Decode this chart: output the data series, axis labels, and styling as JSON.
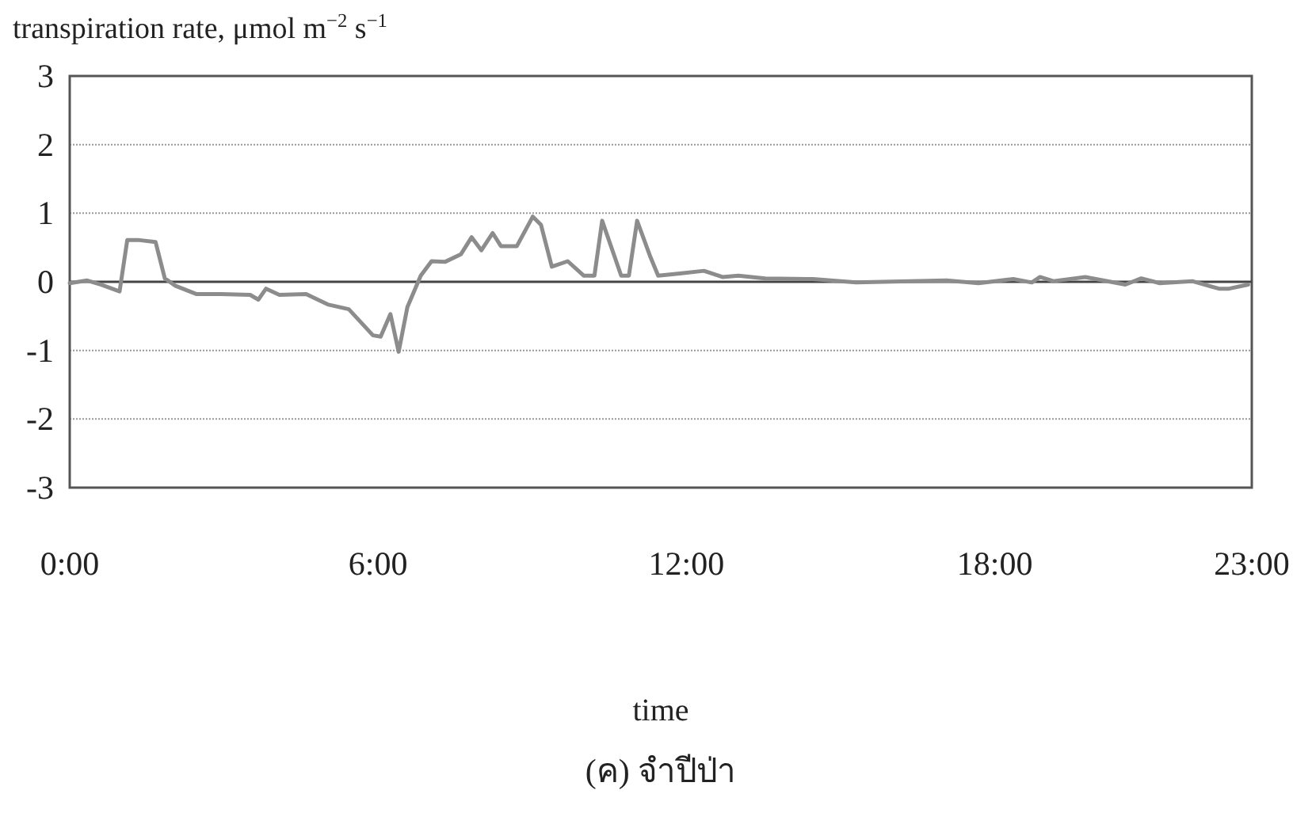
{
  "chart_data": {
    "type": "line",
    "ylabel": "transpiration rate, μmol m$^{−2}$ s$^{−1}$",
    "xlabel": "time",
    "title": "(ค) จำปีป่า",
    "x": [
      0,
      0.34,
      0.6,
      0.97,
      1.12,
      1.33,
      1.67,
      1.85,
      2.06,
      2.47,
      2.94,
      3.51,
      3.67,
      3.82,
      4.08,
      4.6,
      5.02,
      5.43,
      5.9,
      6.05,
      6.24,
      6.4,
      6.57,
      6.83,
      7.04,
      7.3,
      7.61,
      7.82,
      8.01,
      8.23,
      8.39,
      8.7,
      9.01,
      9.17,
      9.38,
      9.69,
      10.0,
      10.21,
      10.36,
      10.73,
      10.88,
      11.04,
      11.3,
      11.45,
      11.87,
      12.34,
      12.7,
      13.01,
      13.53,
      14.46,
      15.3,
      17.06,
      17.68,
      18.36,
      18.72,
      18.88,
      19.14,
      19.76,
      20.54,
      20.85,
      21.21,
      21.84,
      22.36,
      22.56,
      22.93
    ],
    "series": [
      {
        "color": "#8c8c8c",
        "values": [
          -0.02,
          0.02,
          -0.04,
          -0.14,
          0.61,
          0.61,
          0.58,
          0.05,
          -0.06,
          -0.18,
          -0.18,
          -0.19,
          -0.26,
          -0.1,
          -0.19,
          -0.18,
          -0.33,
          -0.4,
          -0.78,
          -0.8,
          -0.47,
          -1.02,
          -0.37,
          0.09,
          0.3,
          0.29,
          0.4,
          0.65,
          0.46,
          0.71,
          0.52,
          0.52,
          0.95,
          0.83,
          0.22,
          0.3,
          0.09,
          0.09,
          0.89,
          0.09,
          0.09,
          0.89,
          0.36,
          0.09,
          0.12,
          0.16,
          0.07,
          0.09,
          0.05,
          0.04,
          -0.01,
          0.02,
          -0.02,
          0.04,
          -0.01,
          0.07,
          0.01,
          0.07,
          -0.04,
          0.05,
          -0.02,
          0.01,
          -0.1,
          -0.1,
          -0.04
        ]
      }
    ],
    "xlim": [
      0,
      23
    ],
    "xticks": [
      {
        "value": 0,
        "label": "0:00"
      },
      {
        "value": 6,
        "label": "6:00"
      },
      {
        "value": 12,
        "label": "12:00"
      },
      {
        "value": 18,
        "label": "18:00"
      },
      {
        "value": 23,
        "label": "23:00"
      }
    ],
    "ylim": [
      -3,
      3
    ],
    "yticks": [
      -3,
      -2,
      -1,
      0,
      1,
      2,
      3
    ],
    "grid": "y",
    "marker": "none",
    "line_style": "solid"
  }
}
